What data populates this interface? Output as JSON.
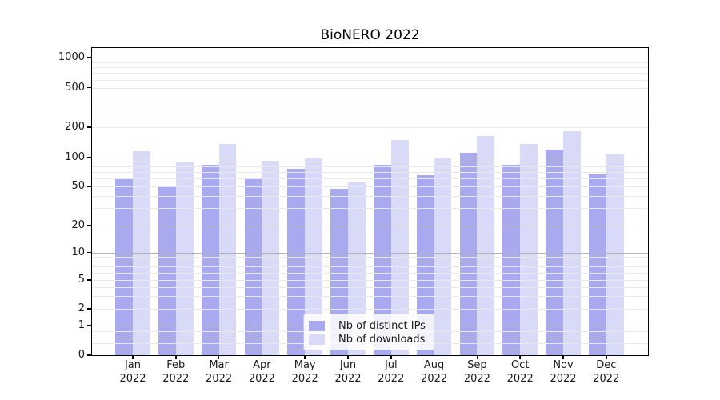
{
  "title": "BioNERO 2022",
  "legend": {
    "items": [
      {
        "label": "Nb of distinct IPs",
        "color": "#a9a9ef"
      },
      {
        "label": "Nb of downloads",
        "color": "#d9d9f8"
      }
    ]
  },
  "y_axis": {
    "tick_values": [
      0,
      1,
      2,
      5,
      10,
      20,
      50,
      100,
      200,
      500,
      1000
    ],
    "tick_labels": [
      "0",
      "1",
      "2",
      "5",
      "10",
      "20",
      "50",
      "100",
      "200",
      "500",
      "1000"
    ],
    "major_gridlines": [
      1,
      10,
      100,
      1000
    ],
    "minor_gridlines": [
      0.2,
      0.4,
      0.6,
      0.8,
      2,
      3,
      4,
      5,
      6,
      7,
      8,
      9,
      20,
      30,
      40,
      50,
      60,
      70,
      80,
      90,
      200,
      300,
      400,
      500,
      600,
      700,
      800,
      900
    ]
  },
  "x_axis": {
    "year": "2022",
    "months": [
      "Jan",
      "Feb",
      "Mar",
      "Apr",
      "May",
      "Jun",
      "Jul",
      "Aug",
      "Sep",
      "Oct",
      "Nov",
      "Dec"
    ]
  },
  "chart_data": {
    "type": "bar",
    "title": "BioNERO 2022",
    "yscale": "symlog",
    "grid": "both",
    "legend_position": "lower center",
    "categories": [
      "Jan 2022",
      "Feb 2022",
      "Mar 2022",
      "Apr 2022",
      "May 2022",
      "Jun 2022",
      "Jul 2022",
      "Aug 2022",
      "Sep 2022",
      "Oct 2022",
      "Nov 2022",
      "Dec 2022"
    ],
    "series": [
      {
        "name": "Nb of distinct IPs",
        "color": "#a9a9ef",
        "values": [
          61,
          51,
          84,
          62,
          76,
          47,
          84,
          65,
          110,
          84,
          120,
          66
        ]
      },
      {
        "name": "Nb of downloads",
        "color": "#d9d9f8",
        "values": [
          115,
          89,
          136,
          92,
          100,
          55,
          150,
          99,
          162,
          135,
          183,
          106
        ]
      }
    ],
    "yticks": [
      0,
      1,
      2,
      5,
      10,
      20,
      50,
      100,
      200,
      500,
      1000
    ],
    "ylim": [
      0,
      1250
    ],
    "xlabel": "",
    "ylabel": ""
  }
}
